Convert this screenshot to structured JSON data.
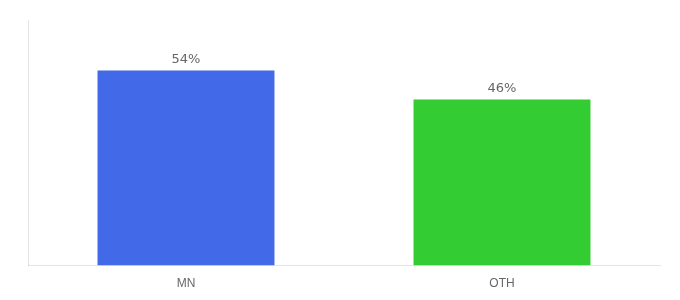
{
  "chart_data": {
    "type": "bar",
    "categories": [
      "MN",
      "OTH"
    ],
    "values": [
      54,
      46
    ],
    "value_labels": [
      "54%",
      "46%"
    ],
    "colors": [
      "#4169e8",
      "#33cc33"
    ],
    "ylim": [
      0,
      68
    ],
    "data_labels": true,
    "tick_labels": "x",
    "grid": false
  }
}
